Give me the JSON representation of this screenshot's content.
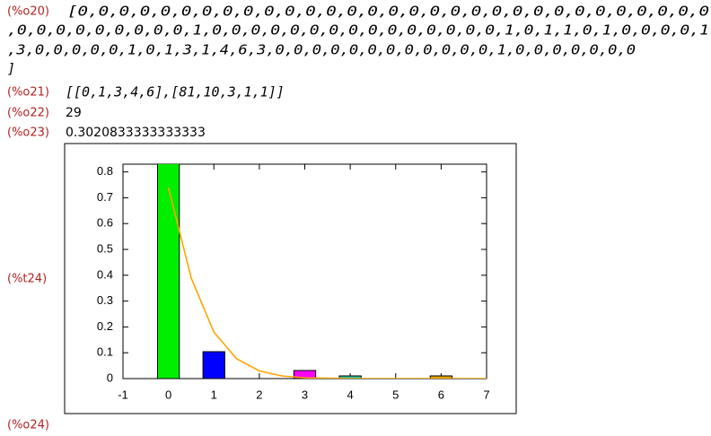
{
  "outputs": [
    {
      "label": "(%o20)",
      "lines": [
        "[0,0,0,0,0,0,0,0,0,0,0,0,0,0,0,0,0,0,0,0,0,0,0,0,0,0,0,0,0,0,0",
        ",0,0,0,0,0,0,0,0,0,1,0,0,0,0,0,0,0,0,0,0,0,0,0,0,0,1,0,1,1,0,1,0,0,0,0,1",
        ",3,0,0,0,0,0,1,0,1,3,1,4,6,3,0,0,0,0,0,0,0,0,0,0,0,0,1,0,0,0,0,0,0,0",
        "]"
      ]
    },
    {
      "label": "(%o21)",
      "text": "[[0,1,3,4,6],[81,10,3,1,1]]"
    },
    {
      "label": "(%o22)",
      "text": "29"
    },
    {
      "label": "(%o23)",
      "text": "0.3020833333333333"
    }
  ],
  "plot": {
    "label": "(%t24)",
    "type": "bar",
    "x": [
      0,
      1,
      3,
      4,
      6
    ],
    "values": [
      0.84375,
      0.104167,
      0.03125,
      0.0104,
      0.0104
    ],
    "colors": [
      "#00ee00",
      "#0000ff",
      "#ff00ff",
      "#20c0a0",
      "#e0a000"
    ],
    "curve": {
      "color": "#ffa500",
      "x": [
        0,
        0.2,
        0.5,
        1,
        1.5,
        2,
        2.5,
        3,
        4,
        5,
        6,
        7
      ],
      "y": [
        0.74,
        0.6,
        0.39,
        0.18,
        0.077,
        0.03,
        0.01,
        0.003,
        0,
        0,
        0,
        0
      ]
    },
    "xlim": [
      -1,
      7
    ],
    "xticks": [
      -1,
      0,
      1,
      2,
      3,
      4,
      5,
      6,
      7
    ],
    "ylim": [
      0,
      0.83
    ],
    "yticks": [
      0,
      0.1,
      0.2,
      0.3,
      0.4,
      0.5,
      0.6,
      0.7,
      0.8
    ]
  },
  "next_label": "(%o24)"
}
